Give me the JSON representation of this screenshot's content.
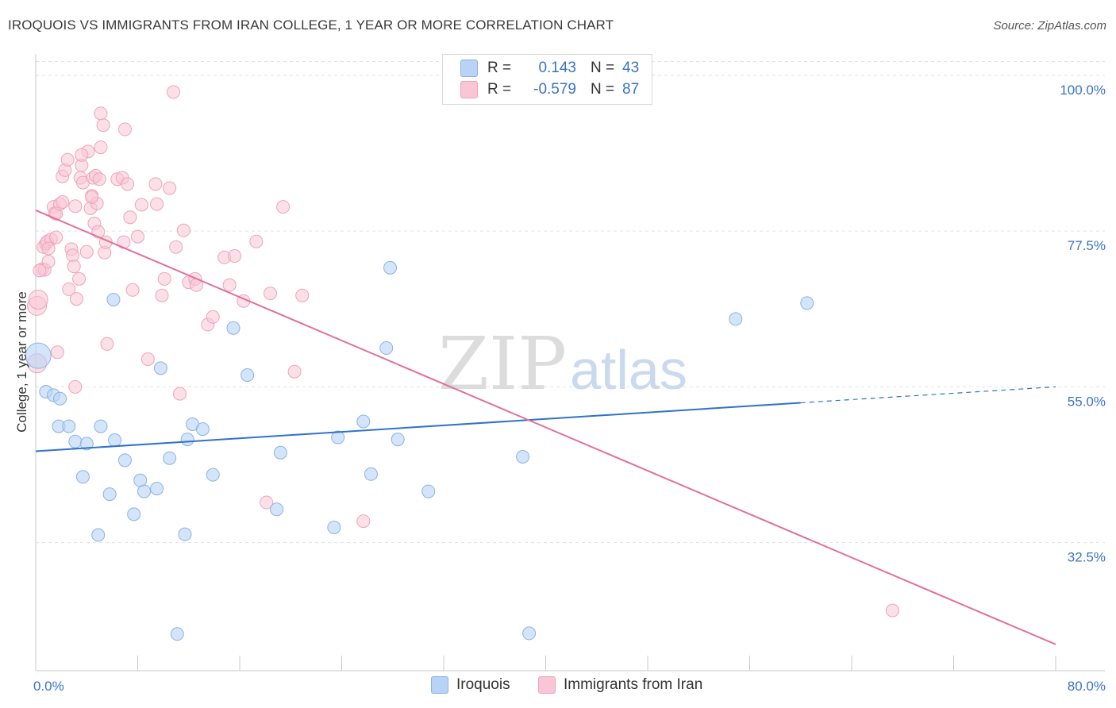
{
  "header": {
    "title": "IROQUOIS VS IMMIGRANTS FROM IRAN COLLEGE, 1 YEAR OR MORE CORRELATION CHART",
    "source": "Source: ZipAtlas.com"
  },
  "legend": {
    "rows": [
      {
        "r_label": "R =",
        "r_value": "0.143",
        "n_label": "N =",
        "n_value": "43"
      },
      {
        "r_label": "R =",
        "r_value": "-0.579",
        "n_label": "N =",
        "n_value": "87"
      }
    ]
  },
  "colors": {
    "iroquois_fill": "#b8d3f5",
    "iroquois_stroke": "#8ab2e6",
    "iroquois_line": "#2f72cc",
    "iran_fill": "#f9c6d5",
    "iran_stroke": "#eea3bb",
    "iran_line": "#e2709a",
    "axis_label": "#3a73c6",
    "grid": "#e2e2e2"
  },
  "watermark": {
    "zip": "ZIP",
    "atlas": "atlas"
  },
  "chart_data": {
    "type": "scatter",
    "title": "IROQUOIS VS IMMIGRANTS FROM IRAN COLLEGE, 1 YEAR OR MORE CORRELATION CHART",
    "xlabel": "",
    "ylabel": "College, 1 year or more",
    "xlim": [
      0,
      80
    ],
    "ylim": [
      14,
      104
    ],
    "x_tick_labels": [
      "0.0%",
      "80.0%"
    ],
    "y_ticks": [
      32.5,
      55.0,
      77.5,
      100.0
    ],
    "y_tick_labels": [
      "32.5%",
      "55.0%",
      "77.5%",
      "100.0%"
    ],
    "grid": true,
    "legend_placement": "top-center",
    "series": [
      {
        "name": "Iroquois",
        "r": 0.143,
        "n": 43,
        "trend": {
          "x0": 0,
          "y0": 45.7,
          "x1": 60,
          "y1": 52.7,
          "dashed_to_x": 80,
          "dashed_to_y": 55.0
        },
        "points": [
          [
            0.2,
            59.5
          ],
          [
            0.8,
            54.3
          ],
          [
            1.4,
            53.8
          ],
          [
            1.9,
            53.3
          ],
          [
            1.8,
            49.3
          ],
          [
            2.6,
            49.3
          ],
          [
            3.1,
            47.1
          ],
          [
            4.0,
            46.8
          ],
          [
            5.1,
            49.3
          ],
          [
            6.2,
            47.3
          ],
          [
            7.0,
            44.4
          ],
          [
            3.7,
            42.0
          ],
          [
            5.8,
            39.5
          ],
          [
            8.2,
            41.5
          ],
          [
            8.5,
            39.9
          ],
          [
            9.5,
            40.3
          ],
          [
            7.7,
            36.6
          ],
          [
            4.9,
            33.6
          ],
          [
            9.8,
            57.7
          ],
          [
            10.5,
            44.7
          ],
          [
            11.9,
            47.4
          ],
          [
            12.3,
            49.6
          ],
          [
            13.1,
            48.9
          ],
          [
            13.9,
            42.3
          ],
          [
            11.7,
            33.7
          ],
          [
            11.1,
            19.3
          ],
          [
            6.1,
            67.6
          ],
          [
            15.5,
            63.5
          ],
          [
            16.6,
            56.7
          ],
          [
            19.2,
            45.5
          ],
          [
            18.9,
            37.3
          ],
          [
            23.7,
            47.7
          ],
          [
            25.7,
            50.0
          ],
          [
            26.3,
            42.4
          ],
          [
            27.5,
            60.6
          ],
          [
            27.8,
            72.2
          ],
          [
            28.4,
            47.4
          ],
          [
            30.8,
            39.9
          ],
          [
            23.4,
            34.7
          ],
          [
            38.2,
            44.9
          ],
          [
            38.7,
            19.4
          ],
          [
            54.9,
            64.8
          ],
          [
            60.5,
            67.1
          ]
        ]
      },
      {
        "name": "Immigrants from Iran",
        "r": -0.579,
        "n": 87,
        "trend": {
          "x0": 0,
          "y0": 80.5,
          "x1": 80,
          "y1": 17.8
        },
        "points": [
          [
            0.1,
            58.4
          ],
          [
            0.1,
            66.7
          ],
          [
            0.2,
            67.6
          ],
          [
            0.5,
            72.0
          ],
          [
            0.7,
            71.9
          ],
          [
            0.6,
            75.2
          ],
          [
            0.8,
            75.7
          ],
          [
            0.9,
            76.0
          ],
          [
            1.0,
            73.1
          ],
          [
            1.2,
            76.3
          ],
          [
            1.4,
            81.0
          ],
          [
            1.5,
            80.1
          ],
          [
            1.6,
            76.6
          ],
          [
            1.7,
            60.0
          ],
          [
            1.6,
            80.0
          ],
          [
            1.9,
            81.4
          ],
          [
            2.1,
            81.7
          ],
          [
            2.1,
            85.4
          ],
          [
            2.3,
            86.3
          ],
          [
            2.5,
            87.8
          ],
          [
            2.6,
            69.1
          ],
          [
            2.8,
            74.9
          ],
          [
            2.9,
            74.0
          ],
          [
            3.0,
            72.4
          ],
          [
            3.1,
            81.1
          ],
          [
            3.1,
            55.0
          ],
          [
            3.2,
            67.7
          ],
          [
            3.4,
            70.6
          ],
          [
            3.5,
            85.2
          ],
          [
            3.6,
            87.0
          ],
          [
            3.7,
            84.5
          ],
          [
            4.0,
            74.5
          ],
          [
            4.1,
            89.0
          ],
          [
            4.3,
            80.8
          ],
          [
            4.4,
            82.6
          ],
          [
            4.5,
            85.2
          ],
          [
            4.6,
            78.6
          ],
          [
            4.7,
            85.5
          ],
          [
            4.8,
            81.5
          ],
          [
            4.9,
            77.4
          ],
          [
            5.0,
            85.0
          ],
          [
            5.1,
            89.6
          ],
          [
            5.1,
            94.5
          ],
          [
            5.4,
            74.4
          ],
          [
            5.5,
            75.9
          ],
          [
            5.3,
            92.8
          ],
          [
            5.6,
            61.2
          ],
          [
            6.4,
            85.0
          ],
          [
            6.8,
            85.2
          ],
          [
            6.9,
            75.9
          ],
          [
            7.0,
            92.2
          ],
          [
            7.2,
            84.3
          ],
          [
            7.4,
            79.5
          ],
          [
            7.6,
            69.0
          ],
          [
            8.0,
            76.7
          ],
          [
            8.3,
            81.3
          ],
          [
            8.8,
            59.0
          ],
          [
            9.4,
            84.3
          ],
          [
            9.9,
            68.2
          ],
          [
            10.1,
            70.6
          ],
          [
            10.5,
            83.7
          ],
          [
            10.8,
            97.6
          ],
          [
            11.0,
            75.2
          ],
          [
            11.3,
            54.0
          ],
          [
            11.6,
            77.6
          ],
          [
            12.0,
            70.1
          ],
          [
            12.5,
            70.6
          ],
          [
            13.5,
            64.0
          ],
          [
            13.9,
            65.1
          ],
          [
            14.8,
            73.7
          ],
          [
            15.2,
            69.7
          ],
          [
            15.6,
            73.9
          ],
          [
            16.3,
            67.4
          ],
          [
            17.3,
            76.0
          ],
          [
            18.4,
            68.5
          ],
          [
            18.1,
            38.3
          ],
          [
            19.4,
            81.0
          ],
          [
            20.3,
            57.2
          ],
          [
            20.9,
            68.2
          ],
          [
            25.7,
            35.6
          ],
          [
            67.2,
            22.7
          ],
          [
            0.3,
            71.8
          ],
          [
            1.0,
            75.0
          ],
          [
            3.6,
            88.5
          ],
          [
            4.4,
            82.4
          ],
          [
            9.5,
            81.4
          ],
          [
            12.6,
            69.7
          ]
        ]
      }
    ]
  },
  "bottom_legend": {
    "items": [
      {
        "label": "Iroquois"
      },
      {
        "label": "Immigrants from Iran"
      }
    ]
  }
}
